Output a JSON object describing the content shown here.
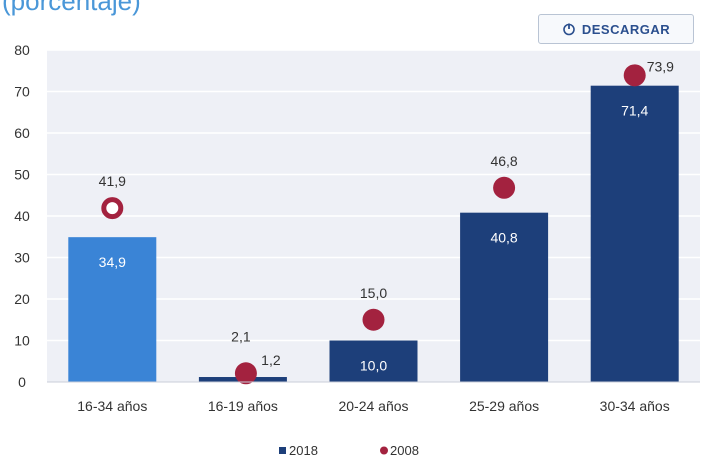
{
  "page": {
    "title": "(porcentaje)"
  },
  "toolbar": {
    "download_label": "DESCARGAR",
    "download_icon": "power-icon"
  },
  "colors": {
    "bar_highlight": "#3a84d6",
    "bar_default": "#1d3f7a",
    "marker": "#a3223f",
    "plot_background": "#eef0f6",
    "grid": "#ffffff"
  },
  "chart_data": {
    "type": "bar",
    "categories": [
      "16-34 años",
      "16-19 años",
      "20-24 años",
      "25-29 años",
      "30-34 años"
    ],
    "series": [
      {
        "name": "2018",
        "kind": "bar",
        "values": [
          34.9,
          1.2,
          10.0,
          40.8,
          71.4
        ],
        "labels": [
          "34,9",
          "1,2",
          "10,0",
          "40,8",
          "71,4"
        ]
      },
      {
        "name": "2008",
        "kind": "marker",
        "values": [
          41.9,
          2.1,
          15.0,
          46.8,
          73.9
        ],
        "labels": [
          "41,9",
          "2,1",
          "15,0",
          "46,8",
          "73,9"
        ]
      }
    ],
    "ylim": [
      0,
      80
    ],
    "yticks": [
      0,
      10,
      20,
      30,
      40,
      50,
      60,
      70,
      80
    ],
    "grid": true,
    "legend": "bottom",
    "legend_entries": [
      "2018",
      "2008"
    ]
  }
}
